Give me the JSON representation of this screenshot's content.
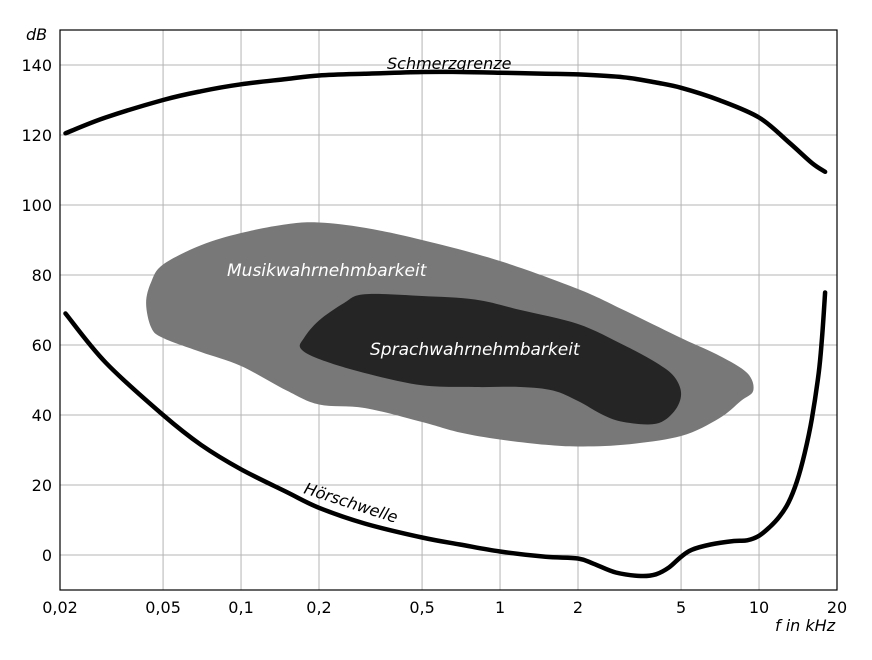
{
  "chart_data": {
    "type": "area",
    "x_scale": "log",
    "xlim": [
      0.02,
      20
    ],
    "ylim": [
      -10,
      150
    ],
    "grid": true,
    "xlabel": "f in kHz",
    "ylabel": "dB",
    "x_ticks": [
      {
        "value": 0.02,
        "label": "0,02"
      },
      {
        "value": 0.05,
        "label": "0,05"
      },
      {
        "value": 0.1,
        "label": "0,1"
      },
      {
        "value": 0.2,
        "label": "0,2"
      },
      {
        "value": 0.5,
        "label": "0,5"
      },
      {
        "value": 1,
        "label": "1"
      },
      {
        "value": 2,
        "label": "2"
      },
      {
        "value": 5,
        "label": "5"
      },
      {
        "value": 10,
        "label": "10"
      },
      {
        "value": 20,
        "label": "20"
      }
    ],
    "y_ticks": [
      {
        "value": 0,
        "label": "0"
      },
      {
        "value": 20,
        "label": "20"
      },
      {
        "value": 40,
        "label": "40"
      },
      {
        "value": 60,
        "label": "60"
      },
      {
        "value": 80,
        "label": "80"
      },
      {
        "value": 100,
        "label": "100"
      },
      {
        "value": 120,
        "label": "120"
      },
      {
        "value": 140,
        "label": "140"
      }
    ],
    "regions": [
      {
        "name": "Musikwahrnehmbarkeit",
        "color": "#787878",
        "outline": [
          [
            0.045,
            65
          ],
          [
            0.05,
            62
          ],
          [
            0.07,
            58
          ],
          [
            0.1,
            54
          ],
          [
            0.15,
            47
          ],
          [
            0.2,
            43
          ],
          [
            0.3,
            42
          ],
          [
            0.5,
            38
          ],
          [
            0.7,
            35
          ],
          [
            1,
            33
          ],
          [
            1.5,
            31.5
          ],
          [
            2,
            31
          ],
          [
            3,
            31.5
          ],
          [
            5,
            34
          ],
          [
            7,
            39
          ],
          [
            8.5,
            44
          ],
          [
            9.5,
            47
          ],
          [
            9,
            52
          ],
          [
            7,
            57
          ],
          [
            5,
            62
          ],
          [
            3,
            70
          ],
          [
            2,
            76
          ],
          [
            1,
            84
          ],
          [
            0.5,
            90
          ],
          [
            0.3,
            93.5
          ],
          [
            0.2,
            95
          ],
          [
            0.15,
            94.5
          ],
          [
            0.1,
            92
          ],
          [
            0.07,
            88.5
          ],
          [
            0.05,
            83
          ],
          [
            0.045,
            78
          ],
          [
            0.043,
            72
          ]
        ]
      },
      {
        "name": "Sprachwahrnehmbarkeit",
        "color": "#252525",
        "outline": [
          [
            0.17,
            59
          ],
          [
            0.2,
            56
          ],
          [
            0.3,
            52
          ],
          [
            0.5,
            48.5
          ],
          [
            0.8,
            48
          ],
          [
            1.2,
            48
          ],
          [
            1.6,
            47
          ],
          [
            2,
            44
          ],
          [
            2.5,
            40
          ],
          [
            3,
            38
          ],
          [
            4,
            37.5
          ],
          [
            4.7,
            41
          ],
          [
            5,
            46
          ],
          [
            4.7,
            51
          ],
          [
            4,
            55
          ],
          [
            3,
            60
          ],
          [
            2,
            66
          ],
          [
            1.2,
            70
          ],
          [
            0.8,
            73
          ],
          [
            0.5,
            74
          ],
          [
            0.3,
            74.5
          ],
          [
            0.25,
            72
          ],
          [
            0.2,
            67
          ],
          [
            0.175,
            62
          ]
        ]
      }
    ],
    "series": [
      {
        "name": "Schmerzgrenze",
        "points": [
          [
            0.021,
            120.5
          ],
          [
            0.03,
            125
          ],
          [
            0.05,
            130
          ],
          [
            0.07,
            132.5
          ],
          [
            0.1,
            134.5
          ],
          [
            0.15,
            136
          ],
          [
            0.2,
            137
          ],
          [
            0.3,
            137.5
          ],
          [
            0.5,
            138
          ],
          [
            0.7,
            138
          ],
          [
            1,
            137.8
          ],
          [
            1.5,
            137.5
          ],
          [
            2,
            137.3
          ],
          [
            3,
            136.5
          ],
          [
            4,
            135
          ],
          [
            5,
            133.5
          ],
          [
            7,
            130
          ],
          [
            10,
            125
          ],
          [
            13,
            118
          ],
          [
            16,
            112
          ],
          [
            18,
            109.5
          ]
        ]
      },
      {
        "name": "Hörschwelle",
        "points": [
          [
            0.021,
            69
          ],
          [
            0.03,
            55
          ],
          [
            0.05,
            40
          ],
          [
            0.07,
            31.5
          ],
          [
            0.1,
            24.5
          ],
          [
            0.15,
            18
          ],
          [
            0.2,
            13.5
          ],
          [
            0.3,
            9
          ],
          [
            0.5,
            5
          ],
          [
            0.7,
            3
          ],
          [
            1,
            1
          ],
          [
            1.5,
            -0.5
          ],
          [
            2,
            -1
          ],
          [
            2.3,
            -2.5
          ],
          [
            2.8,
            -5
          ],
          [
            3.5,
            -6
          ],
          [
            4,
            -5.5
          ],
          [
            4.5,
            -3.5
          ],
          [
            5,
            -0.5
          ],
          [
            5.5,
            1.5
          ],
          [
            6.5,
            3
          ],
          [
            8,
            4
          ],
          [
            9,
            4.2
          ],
          [
            10,
            5.5
          ],
          [
            11,
            8
          ],
          [
            12,
            11
          ],
          [
            13,
            15
          ],
          [
            14,
            21
          ],
          [
            15,
            29
          ],
          [
            16,
            39
          ],
          [
            17,
            52
          ],
          [
            17.5,
            62
          ],
          [
            18,
            75
          ]
        ]
      }
    ],
    "annotations": [
      {
        "text": "Schmerzgrenze",
        "target": "Schmerzgrenze"
      },
      {
        "text": "Musikwahrnehmbarkeit",
        "target": "Musikwahrnehmbarkeit"
      },
      {
        "text": "Sprachwahrnehmbarkeit",
        "target": "Sprachwahrnehmbarkeit"
      },
      {
        "text": "Hörschwelle",
        "target": "Hörschwelle"
      }
    ]
  }
}
